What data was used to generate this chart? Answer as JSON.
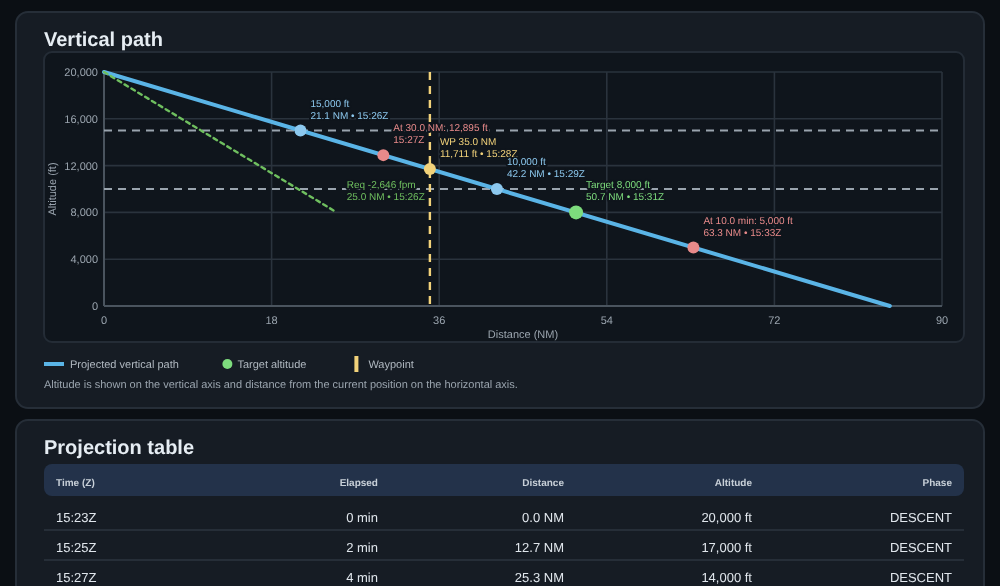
{
  "chart_data": [
    {
      "type": "line",
      "title": "Vertical path",
      "xlabel": "Distance (NM)",
      "ylabel": "Altitude (ft)",
      "xlim": [
        0,
        90
      ],
      "xticks": [
        0,
        18,
        36,
        54,
        72,
        90
      ],
      "ylim": [
        0,
        20000
      ],
      "yticks": [
        0,
        {
          "value": 4000,
          "label": "4,000"
        },
        {
          "value": 8000,
          "label": "8,000"
        },
        {
          "value": 12000,
          "label": "12,000"
        },
        {
          "value": 16000,
          "label": "16,000"
        },
        {
          "value": 20000,
          "label": "20,000"
        }
      ],
      "grid": true,
      "legend": "bottom",
      "series": [
        {
          "name": "Projected vertical path",
          "type": "line",
          "color": "#5ab4e6",
          "x": [
            0,
            84.4
          ],
          "values": [
            20000,
            0
          ],
          "line_style": "solid"
        },
        {
          "type": "line",
          "color": "#6fbf5f",
          "x": [
            0,
            25
          ],
          "values": [
            20000,
            8000
          ],
          "line_style": "dotted"
        },
        {
          "type": "scatter",
          "color": "#8cc8ee",
          "x": [
            21.1,
            42.2
          ],
          "values": [
            15000,
            10000
          ],
          "marker": "circle"
        },
        {
          "type": "scatter",
          "color": "#e88a8a",
          "x": [
            30,
            63.3
          ],
          "values": [
            12895,
            5000
          ],
          "marker": "circle"
        },
        {
          "type": "scatter",
          "color": "#f2d27a",
          "x": [
            35
          ],
          "values": [
            11711
          ],
          "marker": "circle"
        },
        {
          "name": "Target altitude",
          "type": "scatter",
          "color": "#7ddc7d",
          "x": [
            50.7
          ],
          "values": [
            8000
          ],
          "marker": "circle"
        }
      ],
      "ref_lines": [
        {
          "axis": "y",
          "value": 15000,
          "label": null,
          "color": "#9aa4ae",
          "line_style": "dashed"
        },
        {
          "axis": "y",
          "value": 10000,
          "label": null,
          "color": "#9aa4ae",
          "line_style": "dashed"
        },
        {
          "axis": "x",
          "value": 35,
          "label": "Waypoint",
          "color": "#f2d27a",
          "line_style": "dashed"
        }
      ],
      "annotations": [
        {
          "text": "15,000 ft\n21.1 NM • 15:26Z",
          "x": 21.1,
          "y": 15000
        },
        {
          "text": "At 30.0 NM: 12,895 ft\n15:27Z",
          "x": 30,
          "y": 12895
        },
        {
          "text": "WP 35.0 NM\n11,711 ft • 15:28Z",
          "x": 35,
          "y": 11711
        },
        {
          "text": "10,000 ft\n42.2 NM • 15:29Z",
          "x": 42.2,
          "y": 10000
        },
        {
          "text": "Target 8,000 ft\n50.7 NM • 15:31Z",
          "x": 50.7,
          "y": 8000
        },
        {
          "text": "At 10.0 min: 5,000 ft\n63.3 NM • 15:33Z",
          "x": 63.3,
          "y": 5000
        },
        {
          "text": "Req -2,646 fpm\n25.0 NM • 15:26Z",
          "x": 25,
          "y": 8000
        },
        "Altitude is shown on the vertical axis and distance from the current position on the horizontal axis."
      ]
    },
    {
      "type": "other",
      "title": "Projection table",
      "annotations": [
        "Time (Z)",
        "Elapsed",
        "Distance",
        "Altitude",
        "Phase",
        "15:23Z",
        "0 min",
        "0.0 NM",
        "20,000 ft",
        "DESCENT",
        "15:25Z",
        "2 min",
        "12.7 NM",
        "17,000 ft",
        "DESCENT",
        "15:27Z",
        "4 min",
        "25.3 NM",
        "14,000 ft",
        "DESCENT"
      ]
    }
  ]
}
